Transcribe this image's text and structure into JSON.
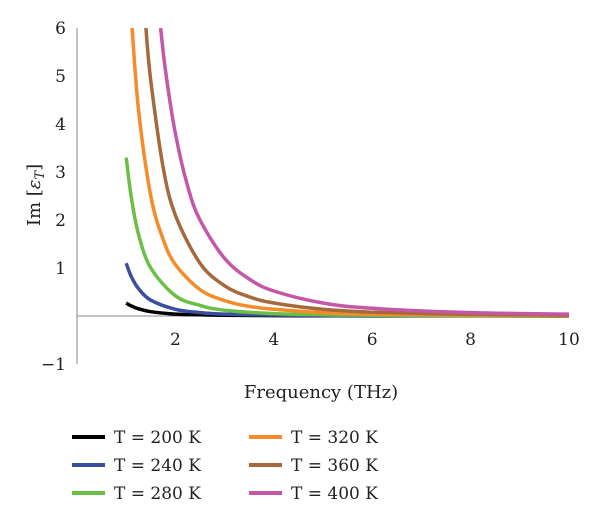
{
  "chart_data": {
    "type": "line",
    "xlabel": "Frequency (THz)",
    "ylabel_base": "Im [",
    "ylabel_symbol": "ε",
    "ylabel_subscript": "T",
    "ylabel_close": "]",
    "xlim": [
      0,
      10
    ],
    "ylim": [
      -1,
      6
    ],
    "x_ticks": [
      "2",
      "4",
      "6",
      "8",
      "10"
    ],
    "y_ticks": [
      "−1",
      "1",
      "2",
      "3",
      "4",
      "5",
      "6"
    ],
    "grid": false,
    "legend_position": "bottom",
    "series": [
      {
        "name": "T = 200 K",
        "color": "#000000",
        "x": [
          1.0,
          1.1,
          1.25,
          1.5,
          2.0,
          2.5,
          3.0,
          4.0,
          5.0,
          6.0,
          8.0,
          10.0
        ],
        "y": [
          0.27,
          0.21,
          0.15,
          0.09,
          0.04,
          0.025,
          0.015,
          0.008,
          0.005,
          0.003,
          0.002,
          0.001
        ]
      },
      {
        "name": "T = 240 K",
        "color": "#3a4f9f",
        "x": [
          1.0,
          1.1,
          1.25,
          1.5,
          2.0,
          2.5,
          3.0,
          4.0,
          5.0,
          6.0,
          8.0,
          10.0
        ],
        "y": [
          1.1,
          0.83,
          0.57,
          0.33,
          0.14,
          0.07,
          0.04,
          0.02,
          0.012,
          0.008,
          0.004,
          0.002
        ]
      },
      {
        "name": "T = 280 K",
        "color": "#6bbf46",
        "x": [
          1.0,
          1.1,
          1.25,
          1.5,
          2.0,
          2.5,
          3.0,
          4.0,
          5.0,
          6.0,
          8.0,
          10.0
        ],
        "y": [
          3.3,
          2.5,
          1.7,
          1.0,
          0.42,
          0.22,
          0.12,
          0.05,
          0.027,
          0.016,
          0.007,
          0.004
        ]
      },
      {
        "name": "T = 320 K",
        "color": "#f58c2a",
        "x": [
          1.12,
          1.25,
          1.5,
          1.75,
          2.0,
          2.5,
          3.0,
          3.5,
          4.0,
          5.0,
          6.0,
          8.0,
          10.0
        ],
        "y": [
          6.0,
          4.3,
          2.5,
          1.6,
          1.07,
          0.55,
          0.32,
          0.2,
          0.14,
          0.07,
          0.04,
          0.018,
          0.01
        ]
      },
      {
        "name": "T = 360 K",
        "color": "#a6693c",
        "x": [
          1.4,
          1.5,
          1.75,
          2.0,
          2.5,
          3.0,
          3.5,
          4.0,
          5.0,
          6.0,
          8.0,
          10.0
        ],
        "y": [
          6.0,
          4.9,
          3.1,
          2.1,
          1.1,
          0.63,
          0.4,
          0.27,
          0.14,
          0.08,
          0.035,
          0.02
        ]
      },
      {
        "name": "T = 400 K",
        "color": "#c457a8",
        "x": [
          1.7,
          1.8,
          2.0,
          2.25,
          2.5,
          3.0,
          3.5,
          4.0,
          5.0,
          6.0,
          8.0,
          10.0
        ],
        "y": [
          6.0,
          5.1,
          3.8,
          2.7,
          2.0,
          1.2,
          0.77,
          0.52,
          0.27,
          0.16,
          0.07,
          0.04
        ]
      }
    ]
  }
}
